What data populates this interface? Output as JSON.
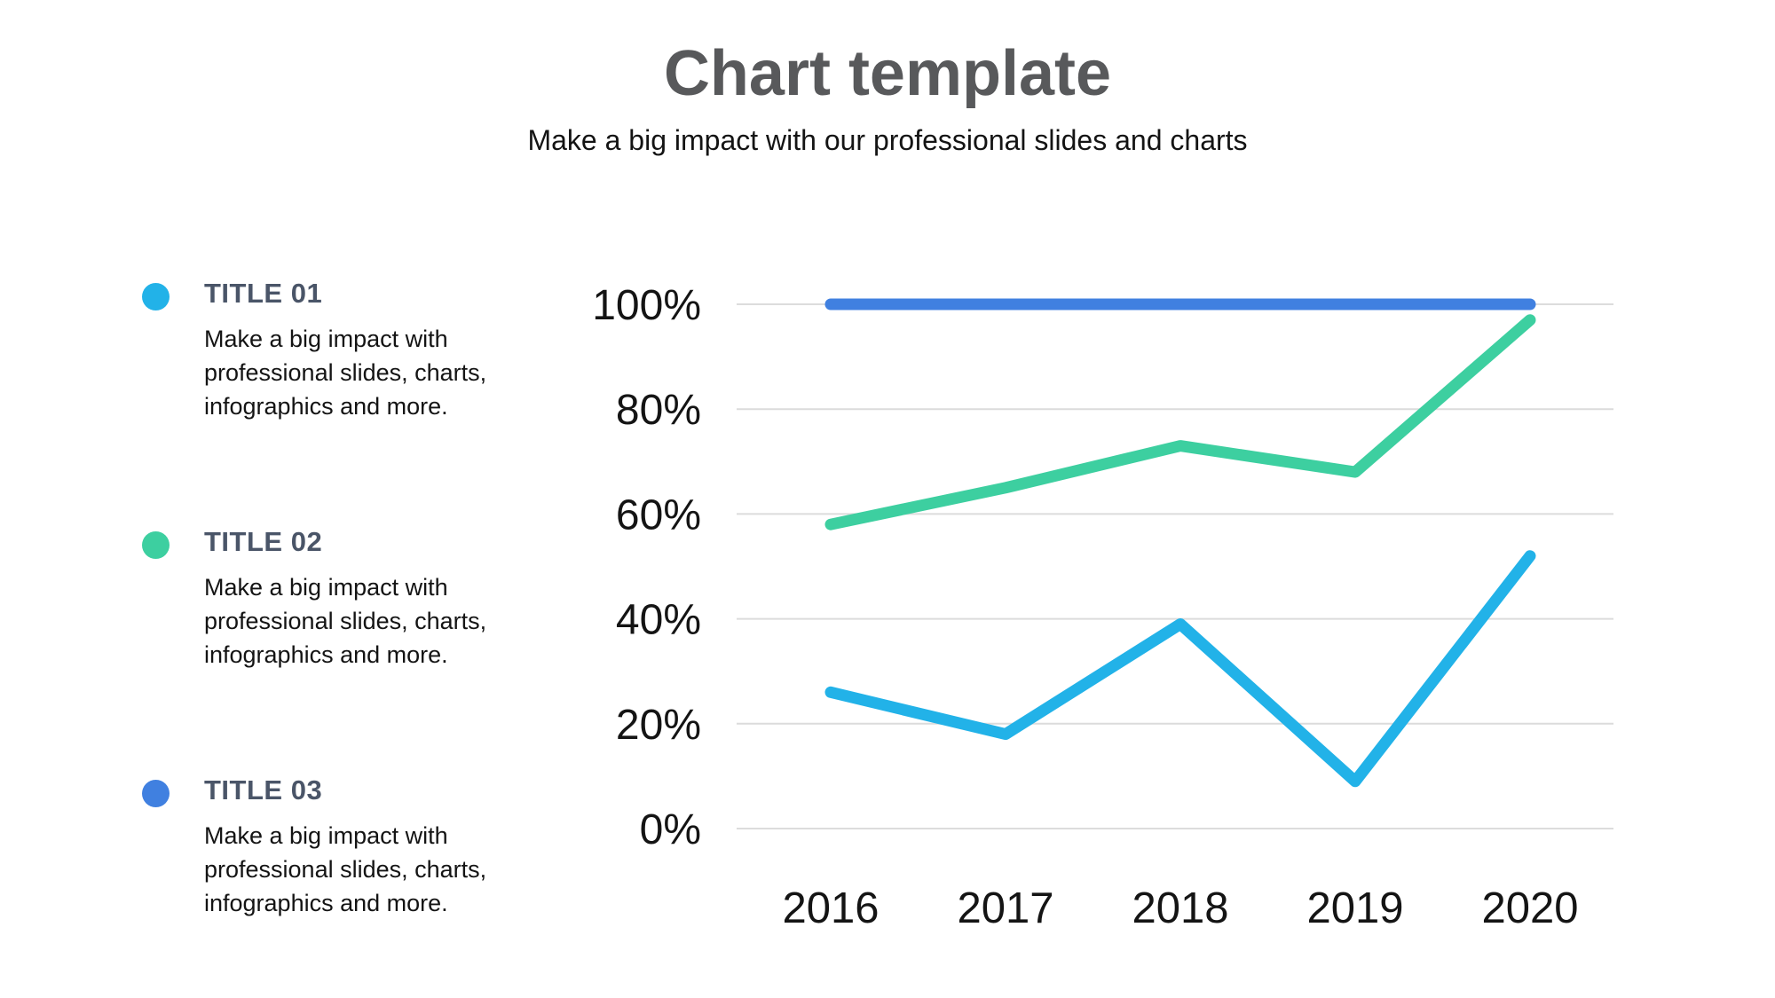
{
  "header": {
    "title": "Chart template",
    "subtitle": "Make a big impact with our professional slides and charts"
  },
  "legend": {
    "items": [
      {
        "label": "TITLE 01",
        "description": "Make a big impact with professional slides, charts, infographics and more.",
        "color": "#22B2E8"
      },
      {
        "label": "TITLE 02",
        "description": "Make a big impact with professional slides, charts, infographics and more.",
        "color": "#3DCFA0"
      },
      {
        "label": "TITLE 03",
        "description": "Make a big impact with professional slides, charts, infographics and more.",
        "color": "#4080E0"
      }
    ]
  },
  "colors": {
    "title_text": "#58595B",
    "legend_title_text": "#4A5568",
    "body_text": "#141414",
    "gridline": "#DCDCDC",
    "series_title01": "#22B2E8",
    "series_title02": "#3DCFA0",
    "series_title03": "#4080E0"
  },
  "chart_data": {
    "type": "line",
    "title": "",
    "xlabel": "",
    "ylabel": "",
    "categories": [
      "2016",
      "2017",
      "2018",
      "2019",
      "2020"
    ],
    "series": [
      {
        "name": "TITLE 01",
        "color": "#22B2E8",
        "values": [
          26,
          18,
          39,
          9,
          52
        ]
      },
      {
        "name": "TITLE 02",
        "color": "#3DCFA0",
        "values": [
          58,
          65,
          73,
          68,
          97
        ]
      },
      {
        "name": "TITLE 03",
        "color": "#4080E0",
        "values": [
          100,
          100,
          100,
          100,
          100
        ]
      }
    ],
    "ylim": [
      0,
      100
    ],
    "yticks": [
      "0%",
      "20%",
      "40%",
      "60%",
      "80%",
      "100%"
    ],
    "grid": true,
    "legend_position": "left"
  }
}
